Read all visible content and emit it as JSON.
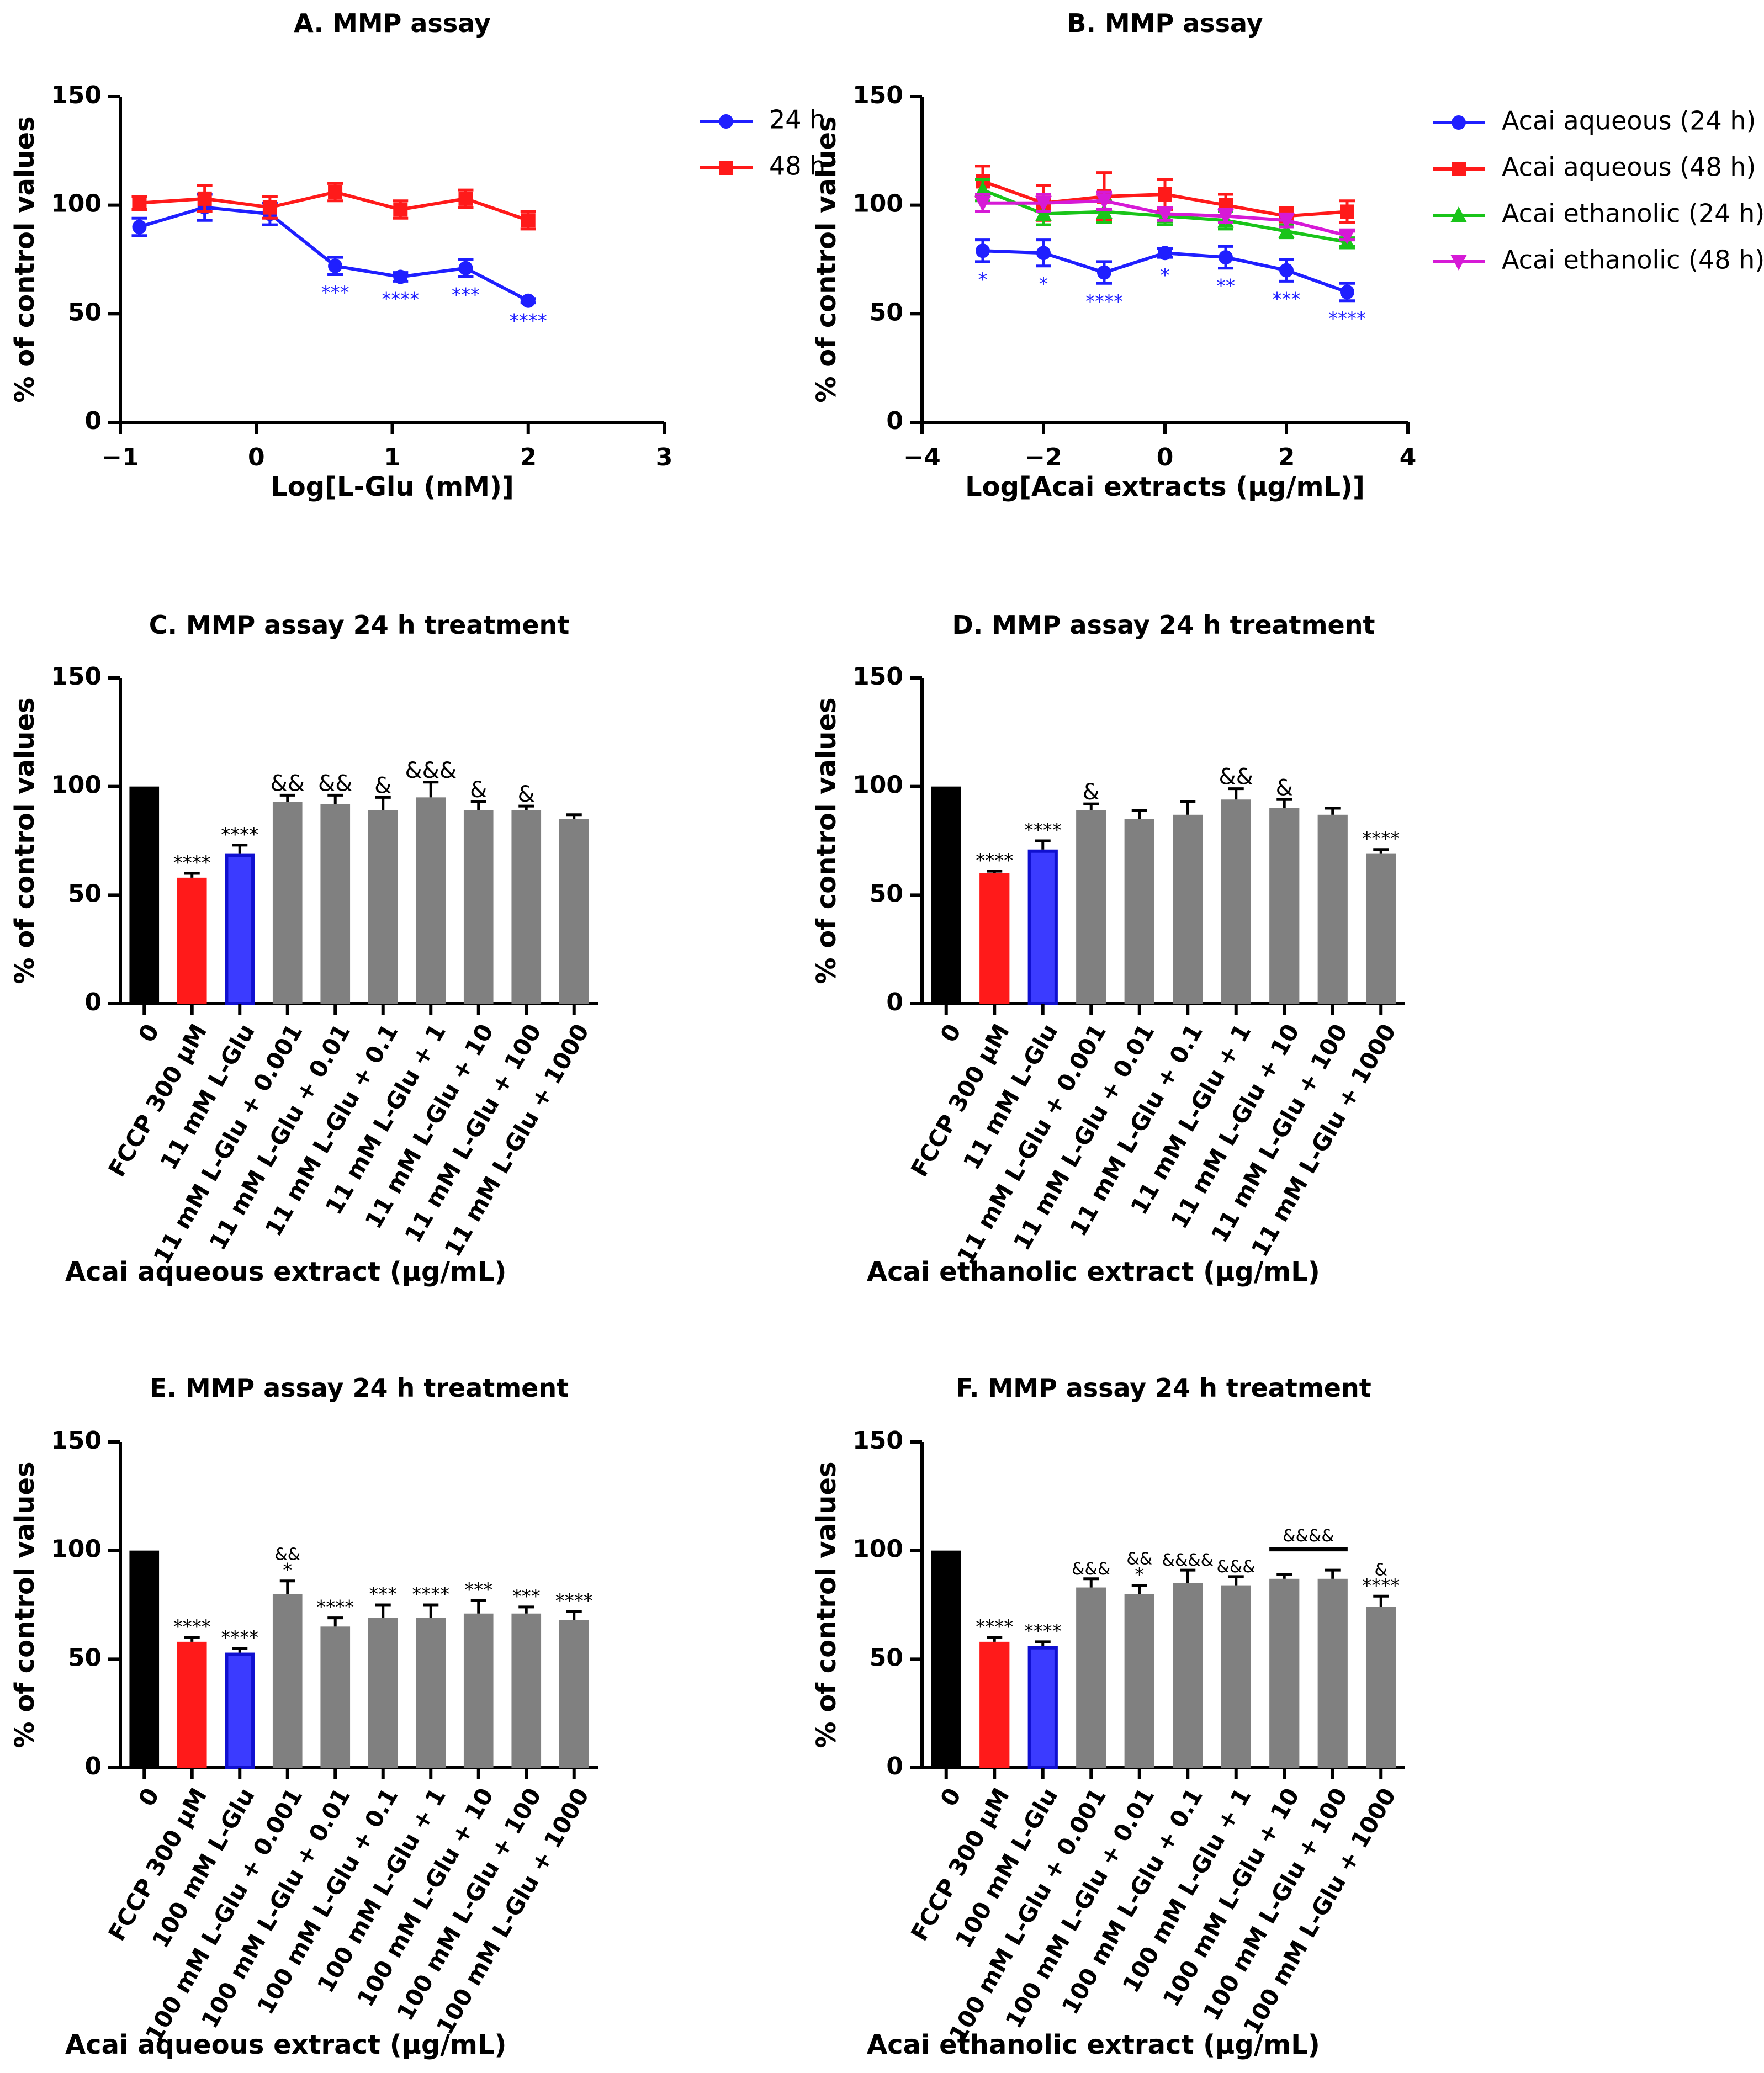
{
  "colors": {
    "blue": "#1f1fff",
    "red": "#ff1a1a",
    "green": "#19c419",
    "magenta": "#d61ad6",
    "black": "#000000",
    "gray": "#808080",
    "blue_bar": "#3b3bff"
  },
  "chart_data": [
    {
      "id": "A",
      "type": "line",
      "title": "A. MMP assay",
      "xlabel": "Log[L-Glu (mM)]",
      "ylabel": "% of control values",
      "xlim": [
        -1,
        3
      ],
      "ylim": [
        0,
        150
      ],
      "xticks": [
        -1,
        0,
        1,
        2,
        3
      ],
      "xtick_labels": [
        "−1",
        "0",
        "1",
        "2",
        "3"
      ],
      "yticks": [
        0,
        50,
        100,
        150
      ],
      "ytick_labels": [
        "0",
        "50",
        "100",
        "150"
      ],
      "legend": "top-right",
      "series": [
        {
          "name": "24 h",
          "color": "blue",
          "marker": "circle",
          "x": [
            -0.86,
            -0.38,
            0.1,
            0.58,
            1.06,
            1.54,
            2.0
          ],
          "y": [
            90,
            99,
            96,
            72,
            67,
            71,
            56
          ],
          "err": [
            4,
            6,
            5,
            4,
            2,
            4,
            1
          ],
          "annotations": [
            "",
            "",
            "",
            "***",
            "****",
            "***",
            "****"
          ]
        },
        {
          "name": "48 h",
          "color": "red",
          "marker": "square",
          "x": [
            -0.86,
            -0.38,
            0.1,
            0.58,
            1.06,
            1.54,
            2.0
          ],
          "y": [
            101,
            103,
            99,
            106,
            98,
            103,
            93
          ],
          "err": [
            3,
            6,
            5,
            4,
            4,
            4,
            4
          ],
          "annotations": [
            "",
            "",
            "",
            "",
            "",
            "",
            ""
          ]
        }
      ]
    },
    {
      "id": "B",
      "type": "line",
      "title": "B. MMP assay",
      "xlabel": "Log[Acai extracts (µg/mL)]",
      "ylabel": "% of control values",
      "xlim": [
        -4,
        4
      ],
      "ylim": [
        0,
        150
      ],
      "xticks": [
        -4,
        -2,
        0,
        2,
        4
      ],
      "xtick_labels": [
        "−4",
        "−2",
        "0",
        "2",
        "4"
      ],
      "yticks": [
        0,
        50,
        100,
        150
      ],
      "ytick_labels": [
        "0",
        "50",
        "100",
        "150"
      ],
      "legend": "top-right",
      "series": [
        {
          "name": "Acai aqueous (24 h)",
          "color": "blue",
          "marker": "circle",
          "x": [
            -3,
            -2,
            -1,
            0,
            1,
            2,
            3
          ],
          "y": [
            79,
            78,
            69,
            78,
            76,
            70,
            60
          ],
          "err": [
            5,
            6,
            5,
            2,
            5,
            5,
            4
          ],
          "annotations": [
            "*",
            "*",
            "****",
            "*",
            "**",
            "***",
            "****"
          ]
        },
        {
          "name": "Acai aqueous (48 h)",
          "color": "red",
          "marker": "square",
          "x": [
            -3,
            -2,
            -1,
            0,
            1,
            2,
            3
          ],
          "y": [
            111,
            101,
            104,
            105,
            100,
            95,
            97
          ],
          "err": [
            7,
            8,
            11,
            7,
            5,
            4,
            5
          ],
          "annotations": [
            "",
            "",
            "",
            "",
            "",
            "",
            ""
          ]
        },
        {
          "name": "Acai ethanolic (24 h)",
          "color": "green",
          "marker": "triangle-up",
          "x": [
            -3,
            -2,
            -1,
            0,
            1,
            2,
            3
          ],
          "y": [
            107,
            96,
            97,
            95,
            93,
            88,
            83
          ],
          "err": [
            5,
            5,
            5,
            4,
            4,
            3,
            2
          ],
          "annotations": [
            "",
            "",
            "",
            "",
            "",
            "",
            ""
          ]
        },
        {
          "name": "Acai ethanolic (48 h)",
          "color": "magenta",
          "marker": "triangle-down",
          "x": [
            -3,
            -2,
            -1,
            0,
            1,
            2,
            3
          ],
          "y": [
            101,
            101,
            102,
            96,
            95,
            93,
            86
          ],
          "err": [
            4,
            4,
            4,
            3,
            3,
            3,
            2
          ],
          "annotations": [
            "",
            "",
            "",
            "",
            "",
            "",
            ""
          ]
        }
      ]
    },
    {
      "id": "C",
      "type": "bar",
      "title": "C. MMP assay 24 h treatment",
      "xlabel": "Acai aqueous extract (µg/mL)",
      "ylabel": "% of control values",
      "ylim": [
        0,
        150
      ],
      "yticks": [
        0,
        50,
        100,
        150
      ],
      "ytick_labels": [
        "0",
        "50",
        "100",
        "150"
      ],
      "categories": [
        "0",
        "FCCP 300 µM",
        "11 mM L-Glu",
        "11 mM L-Glu + 0.001",
        "11 mM L-Glu + 0.01",
        "11 mM L-Glu + 0.1",
        "11 mM L-Glu + 1",
        "11 mM L-Glu + 10",
        "11 mM L-Glu + 100",
        "11 mM L-Glu + 1000"
      ],
      "values": [
        100,
        58,
        69,
        93,
        92,
        89,
        95,
        89,
        89,
        85
      ],
      "errors": [
        0,
        2,
        4,
        3,
        4,
        6,
        7,
        4,
        2,
        2
      ],
      "bar_colors": [
        "black",
        "red",
        "blue_bar",
        "gray",
        "gray",
        "gray",
        "gray",
        "gray",
        "gray",
        "gray"
      ],
      "annotations": [
        "",
        "****",
        "****",
        "&&",
        "&&",
        "&",
        "&&&",
        "&",
        "&",
        ""
      ]
    },
    {
      "id": "D",
      "type": "bar",
      "title": "D. MMP assay 24 h treatment",
      "xlabel": "Acai ethanolic extract (µg/mL)",
      "ylabel": "% of control values",
      "ylim": [
        0,
        150
      ],
      "yticks": [
        0,
        50,
        100,
        150
      ],
      "ytick_labels": [
        "0",
        "50",
        "100",
        "150"
      ],
      "categories": [
        "0",
        "FCCP 300 µM",
        "11 mM L-Glu",
        "11 mM L-Glu + 0.001",
        "11 mM L-Glu + 0.01",
        "11 mM L-Glu + 0.1",
        "11 mM L-Glu + 1",
        "11 mM L-Glu + 10",
        "11 mM L-Glu + 100",
        "11 mM L-Glu + 1000"
      ],
      "values": [
        100,
        60,
        71,
        89,
        85,
        87,
        94,
        90,
        87,
        69
      ],
      "errors": [
        0,
        1,
        4,
        3,
        4,
        6,
        5,
        4,
        3,
        2
      ],
      "bar_colors": [
        "black",
        "red",
        "blue_bar",
        "gray",
        "gray",
        "gray",
        "gray",
        "gray",
        "gray",
        "gray"
      ],
      "annotations": [
        "",
        "****",
        "****",
        "&",
        "",
        "",
        "&&",
        "&",
        "",
        "****"
      ]
    },
    {
      "id": "E",
      "type": "bar",
      "title": "E. MMP assay 24 h treatment",
      "xlabel": "Acai aqueous extract (µg/mL)",
      "ylabel": "% of control values",
      "ylim": [
        0,
        150
      ],
      "yticks": [
        0,
        50,
        100,
        150
      ],
      "ytick_labels": [
        "0",
        "50",
        "100",
        "150"
      ],
      "categories": [
        "0",
        "FCCP 300 µM",
        "100 mM L-Glu",
        "100 mM L-Glu + 0.001",
        "100 mM L-Glu + 0.01",
        "100 mM L-Glu + 0.1",
        "100 mM L-Glu + 1",
        "100 mM L-Glu + 10",
        "100 mM L-Glu + 100",
        "100 mM L-Glu + 1000"
      ],
      "values": [
        100,
        58,
        53,
        80,
        65,
        69,
        69,
        71,
        71,
        68
      ],
      "errors": [
        0,
        2,
        2,
        6,
        4,
        6,
        6,
        6,
        3,
        4
      ],
      "bar_colors": [
        "black",
        "red",
        "blue_bar",
        "gray",
        "gray",
        "gray",
        "gray",
        "gray",
        "gray",
        "gray"
      ],
      "annotations": [
        "",
        "****",
        "****",
        "&&\n*",
        "****",
        "***",
        "****",
        "***",
        "***",
        "****"
      ]
    },
    {
      "id": "F",
      "type": "bar",
      "title": "F. MMP assay 24 h treatment",
      "xlabel": "Acai ethanolic extract (µg/mL)",
      "ylabel": "% of control values",
      "ylim": [
        0,
        150
      ],
      "yticks": [
        0,
        50,
        100,
        150
      ],
      "ytick_labels": [
        "0",
        "50",
        "100",
        "150"
      ],
      "categories": [
        "0",
        "FCCP 300 µM",
        "100 mM L-Glu",
        "100 mM L-Glu + 0.001",
        "100 mM L-Glu + 0.01",
        "100 mM L-Glu + 0.1",
        "100 mM L-Glu + 1",
        "100 mM L-Glu + 10",
        "100 mM L-Glu + 100",
        "100 mM L-Glu + 1000"
      ],
      "values": [
        100,
        58,
        56,
        83,
        80,
        85,
        84,
        87,
        87,
        74
      ],
      "errors": [
        0,
        2,
        2,
        4,
        4,
        6,
        4,
        2,
        4,
        5
      ],
      "bar_colors": [
        "black",
        "red",
        "blue_bar",
        "gray",
        "gray",
        "gray",
        "gray",
        "gray",
        "gray",
        "gray"
      ],
      "annotations": [
        "",
        "****",
        "****",
        "&&&",
        "&&\n*",
        "&&&&",
        "&&&",
        "",
        "",
        "&\n****"
      ],
      "bracket": {
        "from": 7,
        "to": 8,
        "label": "&&&&"
      }
    }
  ]
}
